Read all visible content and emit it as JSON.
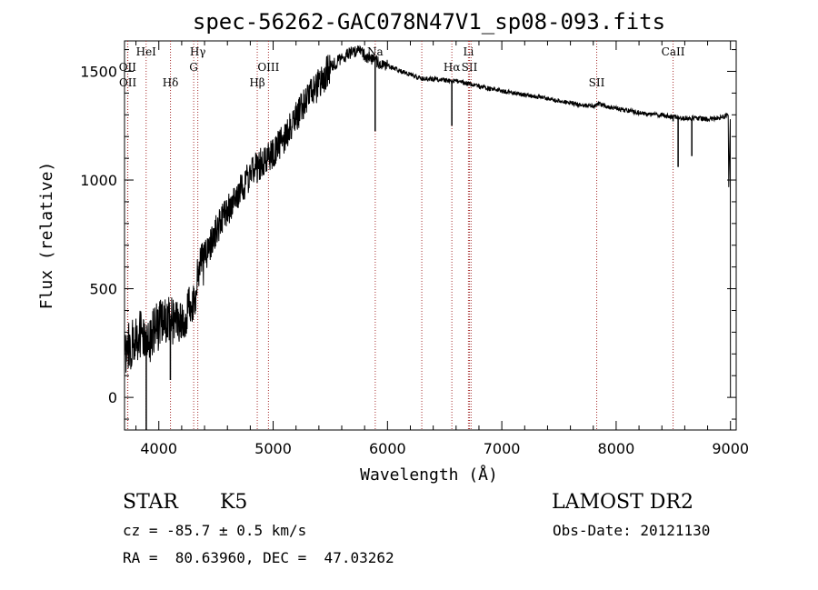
{
  "chart_data": {
    "type": "line",
    "title": "spec-56262-GAC078N47V1_sp08-093.fits",
    "xlabel": "Wavelength (Å)",
    "ylabel": "Flux (relative)",
    "xlim": [
      3700,
      9050
    ],
    "ylim": [
      -150,
      1640
    ],
    "xticks": [
      4000,
      5000,
      6000,
      7000,
      8000,
      9000
    ],
    "yticks": [
      0,
      500,
      1000,
      1500
    ],
    "xtick_labels": [
      "4000",
      "5000",
      "6000",
      "7000",
      "8000",
      "9000"
    ],
    "ytick_labels": [
      "0",
      "500",
      "1000",
      "1500"
    ],
    "line_color": "#000000",
    "marker_color": "#a52a2a",
    "grid": false,
    "spectrum": {
      "x": [
        3700,
        3750,
        3800,
        3850,
        3900,
        3950,
        4000,
        4050,
        4100,
        4150,
        4200,
        4250,
        4300,
        4350,
        4400,
        4500,
        4600,
        4700,
        4800,
        4900,
        5000,
        5100,
        5200,
        5300,
        5400,
        5500,
        5600,
        5700,
        5750,
        5800,
        5850,
        5900,
        5950,
        6000,
        6100,
        6200,
        6300,
        6400,
        6500,
        6600,
        6700,
        6800,
        6900,
        7000,
        7100,
        7200,
        7300,
        7400,
        7500,
        7600,
        7700,
        7800,
        7850,
        7900,
        8000,
        8100,
        8200,
        8300,
        8400,
        8500,
        8600,
        8700,
        8800,
        8900,
        8980,
        9000
      ],
      "y": [
        200,
        240,
        270,
        300,
        250,
        300,
        330,
        360,
        360,
        340,
        360,
        390,
        430,
        560,
        640,
        770,
        860,
        940,
        1030,
        1080,
        1120,
        1200,
        1290,
        1380,
        1440,
        1520,
        1560,
        1590,
        1600,
        1575,
        1560,
        1545,
        1535,
        1525,
        1505,
        1485,
        1465,
        1465,
        1460,
        1455,
        1445,
        1430,
        1420,
        1410,
        1400,
        1390,
        1385,
        1375,
        1365,
        1355,
        1345,
        1340,
        1350,
        1340,
        1330,
        1320,
        1310,
        1300,
        1300,
        1290,
        1285,
        1285,
        1280,
        1285,
        1300,
        0
      ]
    },
    "absorption_dips": [
      {
        "x": 3890,
        "y": -150
      },
      {
        "x": 4101,
        "y": 80
      },
      {
        "x": 5892,
        "y": 1225
      },
      {
        "x": 6563,
        "y": 1250
      },
      {
        "x": 8498,
        "y": 1270
      },
      {
        "x": 8542,
        "y": 1060
      },
      {
        "x": 8662,
        "y": 1110
      }
    ],
    "line_markers": [
      {
        "label": "OII",
        "x": 3727,
        "row": 2
      },
      {
        "label": "OII",
        "x": 3729,
        "row": 3
      },
      {
        "label": "HeI",
        "x": 3889,
        "row": 1
      },
      {
        "label": "Hδ",
        "x": 4102,
        "row": 3
      },
      {
        "label": "Hγ",
        "x": 4341,
        "row": 1
      },
      {
        "label": "G",
        "x": 4305,
        "row": 2
      },
      {
        "label": "Hβ",
        "x": 4861,
        "row": 3
      },
      {
        "label": "OIII",
        "x": 4959,
        "row": 2
      },
      {
        "label": "Na",
        "x": 5893,
        "row": 1
      },
      {
        "label": "Hα",
        "x": 6563,
        "row": 2
      },
      {
        "label": "SII",
        "x": 6717,
        "row": 2
      },
      {
        "label": "Li",
        "x": 6708,
        "row": 1
      },
      {
        "label": "SII",
        "x": 7830,
        "row": 3
      },
      {
        "label": "CaII",
        "x": 8498,
        "row": 1
      },
      {
        "label": "",
        "x": 6300,
        "row": 0
      },
      {
        "label": "",
        "x": 6731,
        "row": 0
      }
    ]
  },
  "info": {
    "object_class": "STAR",
    "subclass": "K5",
    "velocity": "cz = -85.7 ± 0.5 km/s",
    "coordinates": "RA =  80.63960, DEC =  47.03262",
    "survey": "LAMOST DR2",
    "obs_date": "Obs-Date: 20121130"
  }
}
